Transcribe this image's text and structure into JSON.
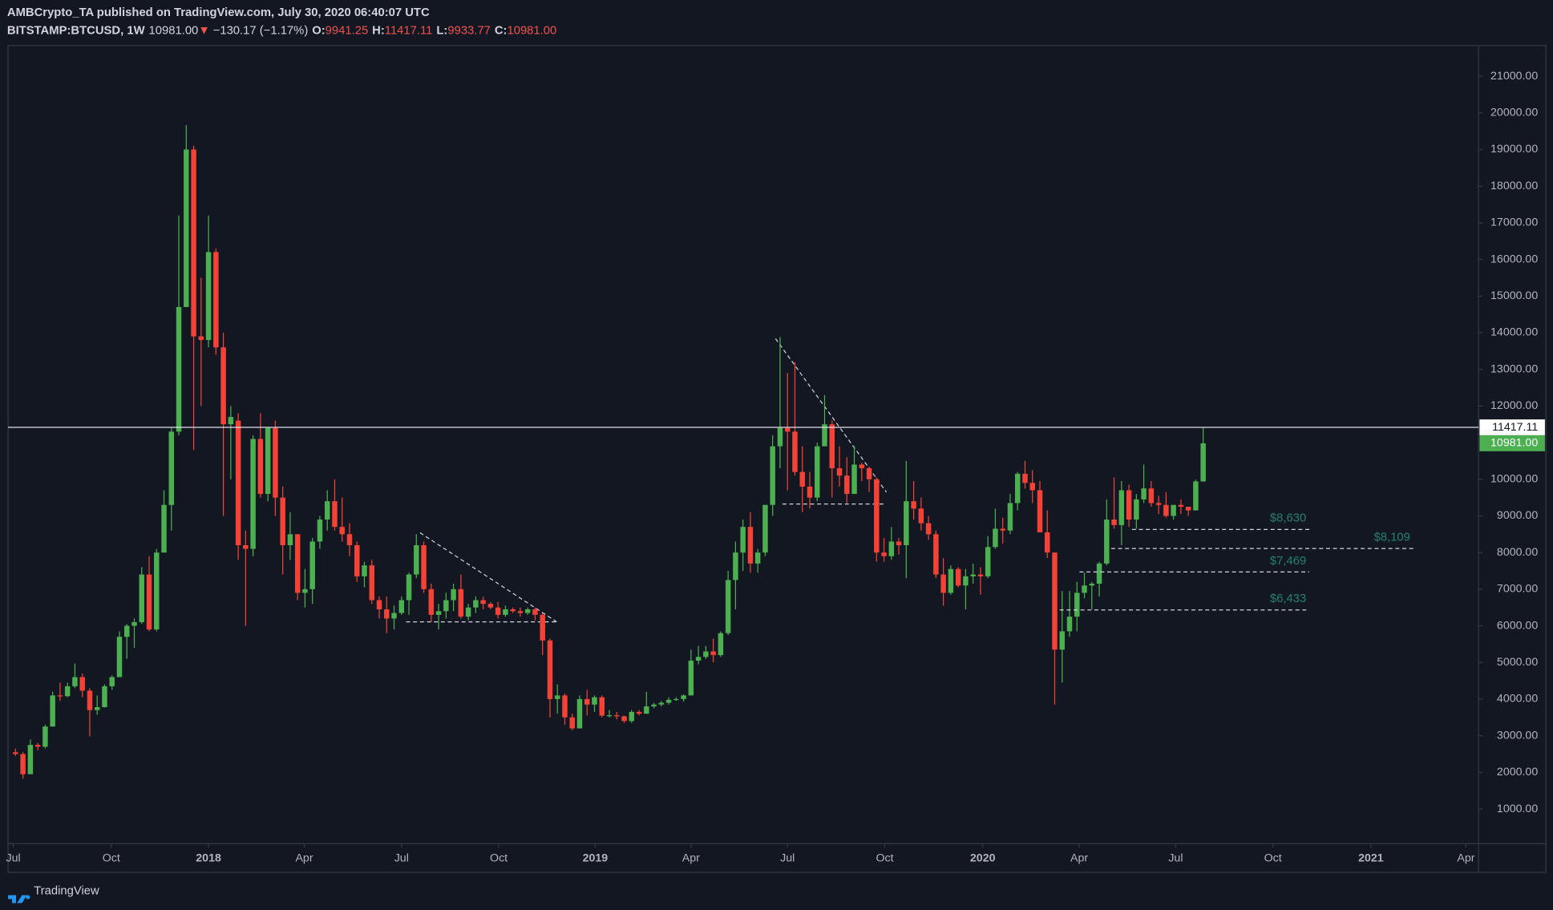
{
  "header": {
    "publisher": "AMBCrypto_TA published on TradingView.com, July 30, 2020 06:40:07 UTC",
    "symbol": "BITSTAMP:BTCUSD, 1W",
    "last": "10981.00",
    "arrow": "▼",
    "change": "−130.17 (−1.17%)",
    "ohlc": [
      {
        "label": "O:",
        "value": "9941.25"
      },
      {
        "label": "H:",
        "value": "11417.11"
      },
      {
        "label": "L:",
        "value": "9933.77"
      },
      {
        "label": "C:",
        "value": "10981.00"
      }
    ]
  },
  "chart_data": {
    "type": "candlestick",
    "up_color": "#4caf50",
    "down_color": "#f44336",
    "ylim": [
      54,
      21838
    ],
    "yticks": [
      {
        "value": 1000,
        "label": "1000.00"
      },
      {
        "value": 2000,
        "label": "2000.00"
      },
      {
        "value": 3000,
        "label": "3000.00"
      },
      {
        "value": 4000,
        "label": "4000.00"
      },
      {
        "value": 5000,
        "label": "5000.00"
      },
      {
        "value": 6000,
        "label": "6000.00"
      },
      {
        "value": 7000,
        "label": "7000.00"
      },
      {
        "value": 8000,
        "label": "8000.00"
      },
      {
        "value": 9000,
        "label": "9000.00"
      },
      {
        "value": 10000,
        "label": "10000.00"
      },
      {
        "value": 11000,
        "label": "11000.00"
      },
      {
        "value": 12000,
        "label": "12000.00"
      },
      {
        "value": 13000,
        "label": "13000.00"
      },
      {
        "value": 14000,
        "label": "14000.00"
      },
      {
        "value": 15000,
        "label": "15000.00"
      },
      {
        "value": 16000,
        "label": "16000.00"
      },
      {
        "value": 17000,
        "label": "17000.00"
      },
      {
        "value": 18000,
        "label": "18000.00"
      },
      {
        "value": 19000,
        "label": "19000.00"
      },
      {
        "value": 20000,
        "label": "20000.00"
      },
      {
        "value": 21000,
        "label": "21000.00"
      }
    ],
    "xlim": [
      -1,
      197.1
    ],
    "xticks": [
      {
        "value": -0.3,
        "label": "Jul"
      },
      {
        "value": 12.9,
        "label": "Oct"
      },
      {
        "value": 26,
        "label": "2018"
      },
      {
        "value": 38.9,
        "label": "Apr"
      },
      {
        "value": 52,
        "label": "Jul"
      },
      {
        "value": 65.1,
        "label": "Oct"
      },
      {
        "value": 78.1,
        "label": "2019"
      },
      {
        "value": 91,
        "label": "Apr"
      },
      {
        "value": 104,
        "label": "Jul"
      },
      {
        "value": 117.1,
        "label": "Oct"
      },
      {
        "value": 130.3,
        "label": "2020"
      },
      {
        "value": 143.3,
        "label": "Apr"
      },
      {
        "value": 156.3,
        "label": "Jul"
      },
      {
        "value": 169.4,
        "label": "Oct"
      },
      {
        "value": 182.6,
        "label": "2021"
      },
      {
        "value": 195.4,
        "label": "Apr"
      }
    ],
    "ohlc": [
      [
        2550,
        2650,
        2450,
        2500
      ],
      [
        2500,
        2550,
        1830,
        1950
      ],
      [
        1950,
        2900,
        1950,
        2750
      ],
      [
        2750,
        2800,
        2600,
        2700
      ],
      [
        2700,
        3300,
        2650,
        3250
      ],
      [
        3250,
        4200,
        3250,
        4100
      ],
      [
        4100,
        4450,
        3950,
        4080
      ],
      [
        4080,
        4450,
        4050,
        4350
      ],
      [
        4350,
        4970,
        4300,
        4600
      ],
      [
        4600,
        4700,
        4050,
        4230
      ],
      [
        4230,
        4300,
        2980,
        3700
      ],
      [
        3700,
        4100,
        3570,
        3780
      ],
      [
        3780,
        4400,
        3770,
        4350
      ],
      [
        4350,
        4650,
        4250,
        4600
      ],
      [
        4600,
        5850,
        4600,
        5700
      ],
      [
        5700,
        6050,
        5100,
        6000
      ],
      [
        6000,
        6200,
        5400,
        6100
      ],
      [
        6100,
        7600,
        6050,
        7400
      ],
      [
        7400,
        7900,
        5850,
        5900
      ],
      [
        5900,
        8100,
        5850,
        8000
      ],
      [
        8000,
        9700,
        8000,
        9300
      ],
      [
        9300,
        11400,
        8600,
        11300
      ],
      [
        11300,
        17200,
        11200,
        14700
      ],
      [
        14700,
        19666,
        14700,
        19000
      ],
      [
        19000,
        19100,
        10800,
        13900
      ],
      [
        13900,
        15500,
        12000,
        13800
      ],
      [
        13800,
        17200,
        13600,
        16200
      ],
      [
        16200,
        16300,
        13400,
        13600
      ],
      [
        13600,
        14000,
        9000,
        11500
      ],
      [
        11500,
        12000,
        10000,
        11700
      ],
      [
        11600,
        11800,
        7800,
        8200
      ],
      [
        8200,
        8600,
        6000,
        8100
      ],
      [
        8100,
        11200,
        7900,
        11100
      ],
      [
        11100,
        11800,
        9500,
        9600
      ],
      [
        9600,
        11400,
        9400,
        11400
      ],
      [
        11400,
        11600,
        9000,
        9500
      ],
      [
        9500,
        9800,
        7400,
        8200
      ],
      [
        8200,
        9100,
        7800,
        8500
      ],
      [
        8500,
        8500,
        6700,
        6900
      ],
      [
        6900,
        7550,
        6500,
        7000
      ],
      [
        7000,
        8400,
        6600,
        8300
      ],
      [
        8300,
        9000,
        8100,
        8900
      ],
      [
        8900,
        9700,
        8600,
        9400
      ],
      [
        9400,
        10000,
        8600,
        8700
      ],
      [
        8700,
        9500,
        8300,
        8500
      ],
      [
        8500,
        8800,
        7900,
        8200
      ],
      [
        8200,
        8300,
        7200,
        7350
      ],
      [
        7350,
        7750,
        7050,
        7650
      ],
      [
        7650,
        7800,
        6600,
        6700
      ],
      [
        6700,
        6800,
        6200,
        6450
      ],
      [
        6450,
        6800,
        5800,
        6200
      ],
      [
        6200,
        6550,
        5900,
        6350
      ],
      [
        6350,
        6800,
        6300,
        6700
      ],
      [
        6700,
        7450,
        6300,
        7400
      ],
      [
        7400,
        8500,
        7300,
        8200
      ],
      [
        8200,
        8300,
        6900,
        7000
      ],
      [
        7000,
        7150,
        6100,
        6300
      ],
      [
        6300,
        6600,
        5900,
        6400
      ],
      [
        6400,
        6900,
        6200,
        6700
      ],
      [
        6700,
        7150,
        6400,
        7000
      ],
      [
        7000,
        7400,
        6200,
        6250
      ],
      [
        6250,
        6600,
        6150,
        6500
      ],
      [
        6500,
        6800,
        6350,
        6700
      ],
      [
        6700,
        6800,
        6450,
        6600
      ],
      [
        6600,
        6650,
        6450,
        6500
      ],
      [
        6500,
        6650,
        6200,
        6300
      ],
      [
        6300,
        6550,
        6250,
        6450
      ],
      [
        6450,
        6500,
        6350,
        6400
      ],
      [
        6400,
        6500,
        6250,
        6350
      ],
      [
        6350,
        6500,
        6300,
        6450
      ],
      [
        6450,
        6500,
        6150,
        6300
      ],
      [
        6300,
        6350,
        5200,
        5600
      ],
      [
        5600,
        5650,
        3500,
        4000
      ],
      [
        4000,
        4400,
        3600,
        4100
      ],
      [
        4100,
        4150,
        3300,
        3500
      ],
      [
        3500,
        3600,
        3150,
        3200
      ],
      [
        3200,
        4100,
        3200,
        4000
      ],
      [
        4000,
        4250,
        3550,
        3850
      ],
      [
        3850,
        4100,
        3650,
        4050
      ],
      [
        4050,
        4100,
        3500,
        3550
      ],
      [
        3550,
        3700,
        3500,
        3560
      ],
      [
        3560,
        3650,
        3450,
        3530
      ],
      [
        3530,
        3550,
        3350,
        3400
      ],
      [
        3400,
        3700,
        3350,
        3650
      ],
      [
        3650,
        3700,
        3550,
        3600
      ],
      [
        3600,
        4200,
        3600,
        3800
      ],
      [
        3800,
        3900,
        3750,
        3850
      ],
      [
        3850,
        3950,
        3800,
        3900
      ],
      [
        3900,
        4050,
        3850,
        3980
      ],
      [
        3980,
        4050,
        3950,
        4000
      ],
      [
        4000,
        4130,
        3930,
        4100
      ],
      [
        4100,
        5350,
        4100,
        5050
      ],
      [
        5050,
        5450,
        4950,
        5150
      ],
      [
        5150,
        5450,
        5100,
        5300
      ],
      [
        5300,
        5650,
        5000,
        5200
      ],
      [
        5200,
        5850,
        5150,
        5800
      ],
      [
        5800,
        7500,
        5750,
        7250
      ],
      [
        7250,
        8300,
        6450,
        8000
      ],
      [
        8000,
        8900,
        7500,
        8700
      ],
      [
        8700,
        9100,
        7450,
        7700
      ],
      [
        7700,
        8100,
        7450,
        8000
      ],
      [
        8000,
        9300,
        7900,
        9300
      ],
      [
        9300,
        11200,
        9000,
        10900
      ],
      [
        10900,
        13880,
        10300,
        11400
      ],
      [
        11400,
        12900,
        9700,
        11300
      ],
      [
        11300,
        13200,
        10100,
        10200
      ],
      [
        10200,
        10900,
        9100,
        9800
      ],
      [
        9800,
        10200,
        9200,
        9500
      ],
      [
        9500,
        11000,
        9400,
        10900
      ],
      [
        10900,
        12300,
        10900,
        11500
      ],
      [
        11500,
        11600,
        9500,
        10300
      ],
      [
        10300,
        10900,
        9800,
        10100
      ],
      [
        10100,
        10600,
        9350,
        9600
      ],
      [
        9600,
        10900,
        9600,
        10400
      ],
      [
        10400,
        10450,
        9950,
        10300
      ],
      [
        10300,
        10350,
        9650,
        10000
      ],
      [
        10000,
        10050,
        7750,
        8000
      ],
      [
        8000,
        8400,
        7750,
        7900
      ],
      [
        7900,
        8700,
        7800,
        8300
      ],
      [
        8300,
        8400,
        7950,
        8200
      ],
      [
        8200,
        10500,
        7300,
        9400
      ],
      [
        9400,
        9950,
        8900,
        9200
      ],
      [
        9200,
        9500,
        8600,
        8800
      ],
      [
        8800,
        9000,
        8350,
        8500
      ],
      [
        8500,
        8600,
        7300,
        7400
      ],
      [
        7400,
        7850,
        6550,
        6900
      ],
      [
        6900,
        7650,
        6850,
        7550
      ],
      [
        7550,
        7600,
        7050,
        7100
      ],
      [
        7100,
        7550,
        6450,
        7350
      ],
      [
        7350,
        7700,
        7150,
        7400
      ],
      [
        7400,
        7600,
        6850,
        7350
      ],
      [
        7350,
        8450,
        7300,
        8150
      ],
      [
        8150,
        9200,
        8100,
        8650
      ],
      [
        8650,
        8950,
        8250,
        8600
      ],
      [
        8600,
        9600,
        8500,
        9350
      ],
      [
        9350,
        10200,
        9150,
        10150
      ],
      [
        10150,
        10500,
        9750,
        9900
      ],
      [
        9900,
        10250,
        9350,
        9700
      ],
      [
        9700,
        9950,
        8550,
        8550
      ],
      [
        8550,
        9150,
        7850,
        8000
      ],
      [
        8000,
        8000,
        3850,
        5350
      ],
      [
        5350,
        6950,
        4450,
        5850
      ],
      [
        5850,
        6950,
        5700,
        6250
      ],
      [
        6250,
        7200,
        5850,
        6900
      ],
      [
        6900,
        7450,
        6750,
        7100
      ],
      [
        7100,
        7200,
        6450,
        7150
      ],
      [
        7150,
        7750,
        6800,
        7700
      ],
      [
        7700,
        9450,
        7650,
        8900
      ],
      [
        8900,
        10050,
        8650,
        8750
      ],
      [
        8750,
        9950,
        8200,
        9700
      ],
      [
        9700,
        9850,
        8700,
        8900
      ],
      [
        8900,
        9600,
        8650,
        9450
      ],
      [
        9450,
        10400,
        9350,
        9750
      ],
      [
        9750,
        9950,
        9250,
        9350
      ],
      [
        9350,
        9550,
        9050,
        9300
      ],
      [
        9300,
        9650,
        8950,
        9000
      ],
      [
        9000,
        9300,
        8900,
        9300
      ],
      [
        9300,
        9450,
        9050,
        9250
      ],
      [
        9250,
        9250,
        9000,
        9150
      ],
      [
        9150,
        9990,
        9150,
        9941.25
      ],
      [
        9941.25,
        11417.11,
        9933.77,
        10981
      ]
    ],
    "high_line": 11417.11,
    "last_price": {
      "value": 10981,
      "label": "10981.00"
    },
    "levels": [
      {
        "value": 8630,
        "label": "$8,630"
      },
      {
        "value": 8109,
        "label": "$8,109"
      },
      {
        "value": 7469,
        "label": "$7,469"
      },
      {
        "value": 6433,
        "label": "$6,433"
      }
    ]
  },
  "footer": {
    "brand": "TradingView"
  }
}
